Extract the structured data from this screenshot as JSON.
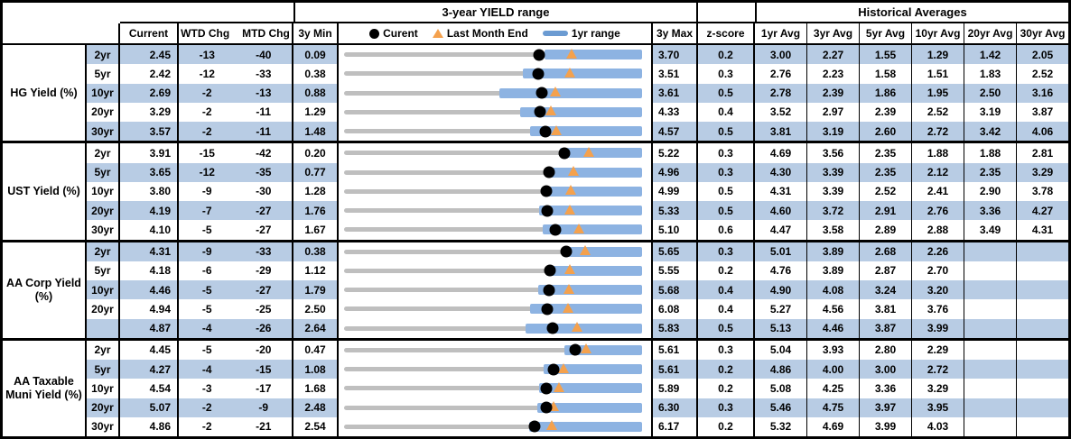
{
  "colors": {
    "row_shade": "#b8cce4",
    "range_bar_blue": "#8db3e2",
    "legend_bar_blue": "#6b9bd2",
    "track_gray": "#bfbfbf",
    "triangle_orange": "#f4a14d",
    "dot_black": "#000000"
  },
  "headers": {
    "yield_range_title": "3-year YIELD range",
    "historical_title": "Historical Averages",
    "current": "Current",
    "wtd": "WTD Chg",
    "mtd": "MTD Chg",
    "min": "3y Min",
    "max": "3y Max",
    "z": "z-score",
    "avg_cols": [
      "1yr Avg",
      "3yr Avg",
      "5yr Avg",
      "10yr Avg",
      "20yr Avg",
      "30yr Avg"
    ],
    "legend": {
      "current": "Curent",
      "last_month": "Last Month End",
      "range": "1yr range"
    }
  },
  "chart_data": {
    "type": "horizontal-range-bar-table",
    "title": "3-year YIELD range",
    "legend_entries": [
      "Curent (black dot)",
      "Last Month End (orange triangle)",
      "1yr range (blue bar)"
    ],
    "axis_note": "each row bar spans 3y Min to 3y Max; blue bar = 1yr range (yr1_low to 3y Max); dot = Current; triangle = Last Month End",
    "groups": [
      {
        "label": "HG Yield (%)",
        "rows": [
          {
            "tenor": "2yr",
            "current": "2.45",
            "wtd": "-13",
            "mtd": "-40",
            "min": "0.09",
            "max": "3.70",
            "z": "0.2",
            "last_month": 2.85,
            "yr1_low": 2.52,
            "avgs": [
              "3.00",
              "2.27",
              "1.55",
              "1.29",
              "1.42",
              "2.05"
            ]
          },
          {
            "tenor": "5yr",
            "current": "2.42",
            "wtd": "-12",
            "mtd": "-33",
            "min": "0.38",
            "max": "3.51",
            "z": "0.3",
            "last_month": 2.75,
            "yr1_low": 2.26,
            "avgs": [
              "2.76",
              "2.23",
              "1.58",
              "1.51",
              "1.83",
              "2.52"
            ]
          },
          {
            "tenor": "10yr",
            "current": "2.69",
            "wtd": "-2",
            "mtd": "-13",
            "min": "0.88",
            "max": "3.61",
            "z": "0.5",
            "last_month": 2.82,
            "yr1_low": 2.3,
            "avgs": [
              "2.78",
              "2.39",
              "1.86",
              "1.95",
              "2.50",
              "3.16"
            ]
          },
          {
            "tenor": "20yr",
            "current": "3.29",
            "wtd": "-2",
            "mtd": "-11",
            "min": "1.29",
            "max": "4.33",
            "z": "0.4",
            "last_month": 3.4,
            "yr1_low": 3.09,
            "avgs": [
              "3.52",
              "2.97",
              "2.39",
              "2.52",
              "3.19",
              "3.87"
            ]
          },
          {
            "tenor": "30yr",
            "current": "3.57",
            "wtd": "-2",
            "mtd": "-11",
            "min": "1.48",
            "max": "4.57",
            "z": "0.5",
            "last_month": 3.68,
            "yr1_low": 3.41,
            "avgs": [
              "3.81",
              "3.19",
              "2.60",
              "2.72",
              "3.42",
              "4.06"
            ]
          }
        ]
      },
      {
        "label": "UST Yield (%)",
        "rows": [
          {
            "tenor": "2yr",
            "current": "3.91",
            "wtd": "-15",
            "mtd": "-42",
            "min": "0.20",
            "max": "5.22",
            "z": "0.3",
            "last_month": 4.33,
            "yr1_low": 3.84,
            "avgs": [
              "4.69",
              "3.56",
              "2.35",
              "1.88",
              "1.88",
              "2.81"
            ]
          },
          {
            "tenor": "5yr",
            "current": "3.65",
            "wtd": "-12",
            "mtd": "-35",
            "min": "0.77",
            "max": "4.96",
            "z": "0.3",
            "last_month": 4.0,
            "yr1_low": 3.63,
            "avgs": [
              "4.30",
              "3.39",
              "2.35",
              "2.12",
              "2.35",
              "3.29"
            ]
          },
          {
            "tenor": "10yr",
            "current": "3.80",
            "wtd": "-9",
            "mtd": "-30",
            "min": "1.28",
            "max": "4.99",
            "z": "0.5",
            "last_month": 4.1,
            "yr1_low": 3.78,
            "avgs": [
              "4.31",
              "3.39",
              "2.52",
              "2.41",
              "2.90",
              "3.78"
            ]
          },
          {
            "tenor": "20yr",
            "current": "4.19",
            "wtd": "-7",
            "mtd": "-27",
            "min": "1.76",
            "max": "5.33",
            "z": "0.5",
            "last_month": 4.46,
            "yr1_low": 4.1,
            "avgs": [
              "4.60",
              "3.72",
              "2.91",
              "2.76",
              "3.36",
              "4.27"
            ]
          },
          {
            "tenor": "30yr",
            "current": "4.10",
            "wtd": "-5",
            "mtd": "-27",
            "min": "1.67",
            "max": "5.10",
            "z": "0.6",
            "last_month": 4.37,
            "yr1_low": 3.96,
            "avgs": [
              "4.47",
              "3.58",
              "2.89",
              "2.88",
              "3.49",
              "4.31"
            ]
          }
        ]
      },
      {
        "label": "AA Corp Yield (%)",
        "rows": [
          {
            "tenor": "2yr",
            "current": "4.31",
            "wtd": "-9",
            "mtd": "-33",
            "min": "0.38",
            "max": "5.65",
            "z": "0.3",
            "last_month": 4.64,
            "yr1_low": 4.26,
            "avgs": [
              "5.01",
              "3.89",
              "2.68",
              "2.26",
              "",
              ""
            ]
          },
          {
            "tenor": "5yr",
            "current": "4.18",
            "wtd": "-6",
            "mtd": "-29",
            "min": "1.12",
            "max": "5.55",
            "z": "0.2",
            "last_month": 4.47,
            "yr1_low": 4.13,
            "avgs": [
              "4.76",
              "3.89",
              "2.87",
              "2.70",
              "",
              ""
            ]
          },
          {
            "tenor": "10yr",
            "current": "4.46",
            "wtd": "-5",
            "mtd": "-27",
            "min": "1.79",
            "max": "5.68",
            "z": "0.4",
            "last_month": 4.73,
            "yr1_low": 4.33,
            "avgs": [
              "4.90",
              "4.08",
              "3.24",
              "3.20",
              "",
              ""
            ]
          },
          {
            "tenor": "20yr",
            "current": "4.94",
            "wtd": "-5",
            "mtd": "-25",
            "min": "2.50",
            "max": "6.08",
            "z": "0.4",
            "last_month": 5.19,
            "yr1_low": 4.73,
            "avgs": [
              "5.27",
              "4.56",
              "3.81",
              "3.76",
              "",
              ""
            ]
          },
          {
            "tenor": "",
            "current": "4.87",
            "wtd": "-4",
            "mtd": "-26",
            "min": "2.64",
            "max": "5.83",
            "z": "0.5",
            "last_month": 5.13,
            "yr1_low": 4.58,
            "avgs": [
              "5.13",
              "4.46",
              "3.87",
              "3.99",
              "",
              ""
            ]
          }
        ]
      },
      {
        "label": "AA Taxable Muni Yield (%)",
        "rows": [
          {
            "tenor": "2yr",
            "current": "4.45",
            "wtd": "-5",
            "mtd": "-20",
            "min": "0.47",
            "max": "5.61",
            "z": "0.3",
            "last_month": 4.65,
            "yr1_low": 4.27,
            "avgs": [
              "5.04",
              "3.93",
              "2.80",
              "2.29",
              "",
              ""
            ]
          },
          {
            "tenor": "5yr",
            "current": "4.27",
            "wtd": "-4",
            "mtd": "-15",
            "min": "1.08",
            "max": "5.61",
            "z": "0.2",
            "last_month": 4.42,
            "yr1_low": 4.12,
            "avgs": [
              "4.86",
              "4.00",
              "3.00",
              "2.72",
              "",
              ""
            ]
          },
          {
            "tenor": "10yr",
            "current": "4.54",
            "wtd": "-3",
            "mtd": "-17",
            "min": "1.68",
            "max": "5.89",
            "z": "0.2",
            "last_month": 4.71,
            "yr1_low": 4.43,
            "avgs": [
              "5.08",
              "4.25",
              "3.36",
              "3.29",
              "",
              ""
            ]
          },
          {
            "tenor": "20yr",
            "current": "5.07",
            "wtd": "-2",
            "mtd": "-9",
            "min": "2.48",
            "max": "6.30",
            "z": "0.3",
            "last_month": 5.16,
            "yr1_low": 4.96,
            "avgs": [
              "5.46",
              "4.75",
              "3.97",
              "3.95",
              "",
              ""
            ]
          },
          {
            "tenor": "30yr",
            "current": "4.86",
            "wtd": "-2",
            "mtd": "-21",
            "min": "2.54",
            "max": "6.17",
            "z": "0.2",
            "last_month": 5.07,
            "yr1_low": 4.8,
            "avgs": [
              "5.32",
              "4.69",
              "3.99",
              "4.03",
              "",
              ""
            ]
          }
        ]
      }
    ]
  }
}
